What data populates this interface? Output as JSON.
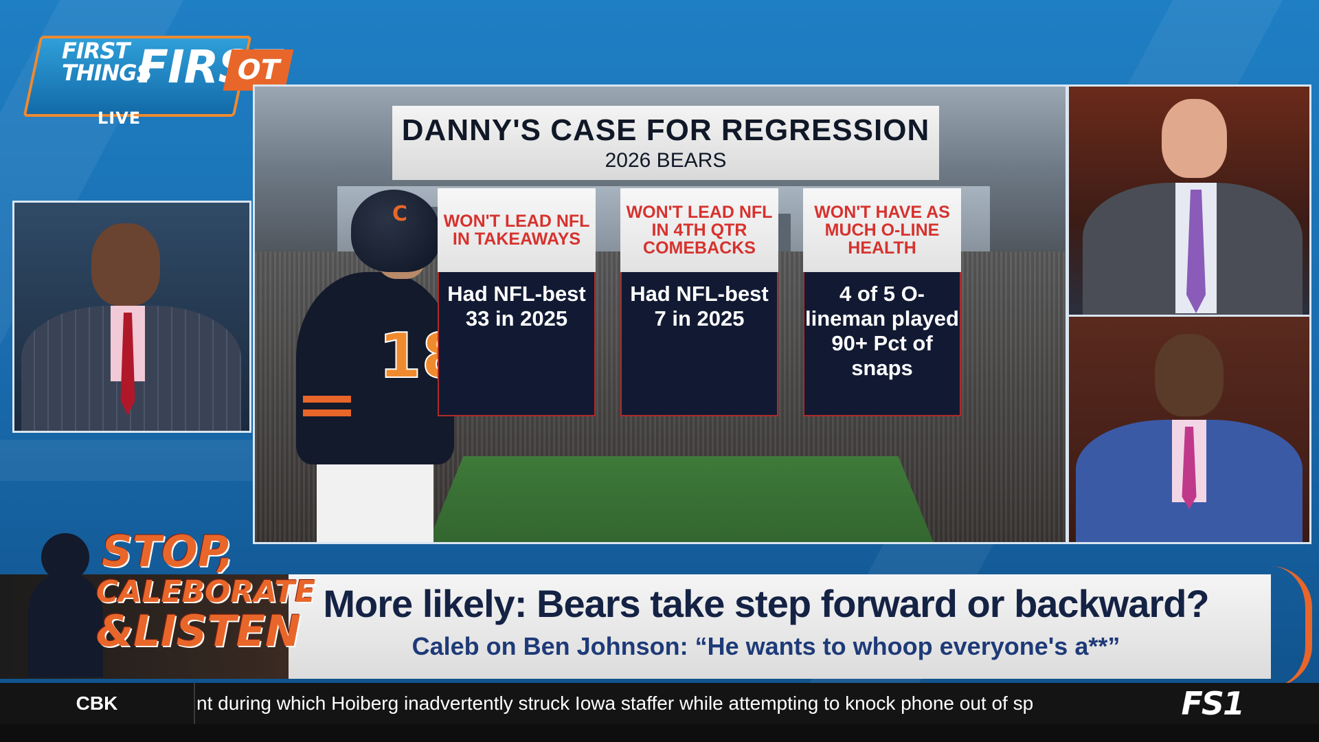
{
  "show": {
    "logo_line1": "FIRST THINGS",
    "logo_line2": "FIRST",
    "logo_badge": "OT",
    "live_label": "LIVE"
  },
  "graphic": {
    "title": "DANNY'S CASE FOR REGRESSION",
    "subtitle": "2026 BEARS",
    "jersey_letter": "C",
    "jersey_number": "18",
    "cards": [
      {
        "heading": "WON'T LEAD NFL IN TAKEAWAYS",
        "body": "Had NFL-best 33 in 2025"
      },
      {
        "heading": "WON'T LEAD NFL IN 4TH QTR COMEBACKS",
        "body": "Had NFL-best 7 in 2025"
      },
      {
        "heading": "WON'T HAVE AS MUCH O-LINE HEALTH",
        "body": "4 of 5 O-lineman played 90+ Pct of snaps"
      }
    ]
  },
  "lower_third": {
    "promo_line1": "STOP,",
    "promo_line2": "CALEBORATE",
    "promo_line3": "&LISTEN",
    "headline": "More likely: Bears take step forward or backward?",
    "subheadline": "Caleb on Ben Johnson: “He wants to whoop everyone's a**”"
  },
  "ticker": {
    "category": "CBK",
    "text": "nt during which Hoiberg inadvertently struck Iowa staffer while attempting to knock phone out of sp",
    "network": "FS1"
  },
  "colors": {
    "accent_orange": "#e8662a",
    "navy": "#121a33",
    "card_red": "#d6322e",
    "background_blue": "#1a6db0"
  }
}
